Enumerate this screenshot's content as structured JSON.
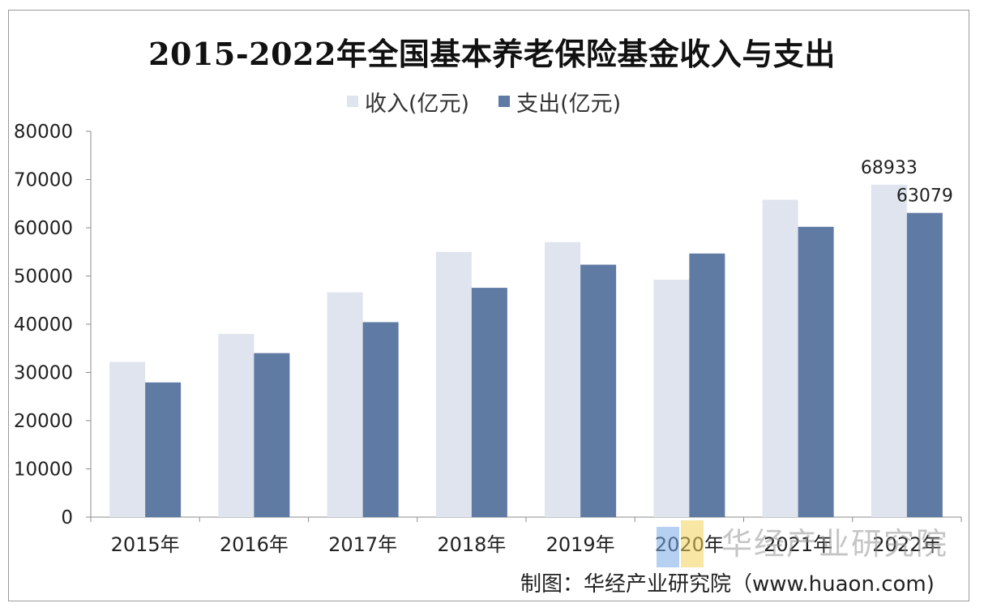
{
  "chart_data": {
    "type": "bar",
    "title": "2015-2022年全国基本养老保险基金收入与支出",
    "categories": [
      "2015年",
      "2016年",
      "2017年",
      "2018年",
      "2019年",
      "2020年",
      "2021年",
      "2022年"
    ],
    "series": [
      {
        "name": "收入(亿元)",
        "color": "#dfe4ee",
        "values": [
          32195,
          37991,
          46614,
          55005,
          57026,
          49229,
          65793,
          68933
        ]
      },
      {
        "name": "支出(亿元)",
        "color": "#5f7aa3",
        "values": [
          27929,
          34004,
          40424,
          47550,
          52342,
          54656,
          60197,
          63079
        ]
      }
    ],
    "data_labels": [
      {
        "series": 0,
        "index": 7,
        "text": "68933"
      },
      {
        "series": 1,
        "index": 7,
        "text": "63079"
      }
    ],
    "ylim": [
      0,
      80000
    ],
    "yticks": [
      "80000",
      "70000",
      "60000",
      "50000",
      "40000",
      "30000",
      "20000",
      "10000",
      "0"
    ],
    "xlabel": "",
    "ylabel": "",
    "legend_position": "top",
    "grid": false
  },
  "watermark": "华经产业研究院",
  "credit": "制图：华经产业研究院（www.huaon.com)"
}
